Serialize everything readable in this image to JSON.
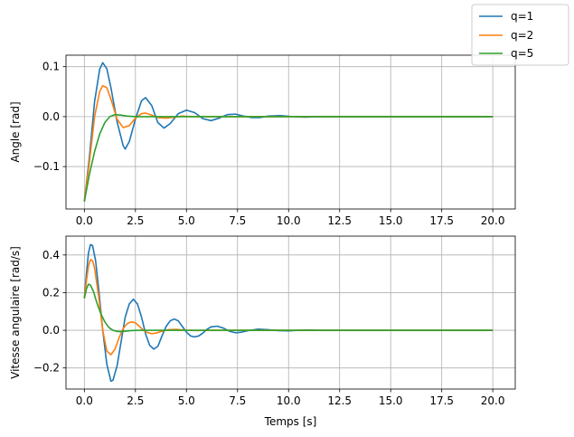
{
  "chart_data": [
    {
      "type": "line",
      "title": "",
      "xlabel": "",
      "ylabel": "Angle [rad]",
      "xlim": [
        -0.9,
        21.1
      ],
      "ylim": [
        -0.185,
        0.123
      ],
      "xticks": [
        0.0,
        2.5,
        5.0,
        7.5,
        10.0,
        12.5,
        15.0,
        17.5,
        20.0
      ],
      "xtick_labels": [
        "0.0",
        "2.5",
        "5.0",
        "7.5",
        "10.0",
        "12.5",
        "15.0",
        "17.5",
        "20.0"
      ],
      "yticks": [
        0.1,
        0.0,
        -0.1
      ],
      "ytick_labels": [
        "0.1",
        "0.0",
        "−0.1"
      ],
      "grid": true,
      "series": [
        {
          "name": "q=1",
          "color": "#1f77b4",
          "x": [
            0,
            0.25,
            0.5,
            0.75,
            0.9,
            1.1,
            1.3,
            1.6,
            1.9,
            2.0,
            2.2,
            2.5,
            2.8,
            3.0,
            3.3,
            3.6,
            3.9,
            4.2,
            4.6,
            5.0,
            5.4,
            5.8,
            6.2,
            6.6,
            7.0,
            7.4,
            7.8,
            8.2,
            8.6,
            9.0,
            9.6,
            10.2,
            10.8,
            11.4,
            12.0,
            13.0,
            14.0,
            16.0,
            18.0,
            20.0
          ],
          "y": [
            -0.17,
            -0.08,
            0.03,
            0.095,
            0.108,
            0.096,
            0.058,
            -0.01,
            -0.058,
            -0.065,
            -0.05,
            -0.005,
            0.032,
            0.038,
            0.022,
            -0.012,
            -0.023,
            -0.014,
            0.006,
            0.013,
            0.008,
            -0.004,
            -0.008,
            -0.003,
            0.004,
            0.005,
            0.001,
            -0.002,
            -0.002,
            0.001,
            0.002,
            0.0,
            -0.001,
            0.0,
            0.0,
            0.0,
            0.0,
            0.0,
            0.0,
            0.0
          ]
        },
        {
          "name": "q=2",
          "color": "#ff7f0e",
          "x": [
            0,
            0.25,
            0.5,
            0.75,
            0.9,
            1.1,
            1.3,
            1.6,
            1.9,
            2.2,
            2.5,
            2.8,
            3.0,
            3.3,
            3.6,
            4.0,
            4.4,
            4.8,
            5.2,
            6.0,
            7.0,
            8.0,
            10.0,
            12.0,
            15.0,
            20.0
          ],
          "y": [
            -0.17,
            -0.09,
            0.0,
            0.05,
            0.062,
            0.058,
            0.035,
            -0.005,
            -0.022,
            -0.018,
            -0.003,
            0.006,
            0.007,
            0.003,
            -0.002,
            -0.003,
            -0.001,
            0.001,
            0.0,
            0.0,
            0.0,
            0.0,
            0.0,
            0.0,
            0.0,
            0.0
          ]
        },
        {
          "name": "q=5",
          "color": "#2ca02c",
          "x": [
            0,
            0.25,
            0.5,
            0.75,
            1.0,
            1.25,
            1.5,
            1.8,
            2.1,
            2.5,
            3.0,
            3.5,
            4.0,
            5.0,
            6.0,
            8.0,
            10.0,
            12.0,
            15.0,
            20.0
          ],
          "y": [
            -0.17,
            -0.115,
            -0.07,
            -0.035,
            -0.012,
            0.0,
            0.004,
            0.003,
            0.001,
            0.0,
            0.0,
            0.0,
            0.0,
            0.0,
            0.0,
            0.0,
            0.0,
            0.0,
            0.0,
            0.0
          ]
        }
      ]
    },
    {
      "type": "line",
      "title": "",
      "xlabel": "Temps [s]",
      "ylabel": "Vitesse angulaire [rad/s]",
      "xlim": [
        -0.9,
        21.1
      ],
      "ylim": [
        -0.312,
        0.5
      ],
      "xticks": [
        0.0,
        2.5,
        5.0,
        7.5,
        10.0,
        12.5,
        15.0,
        17.5,
        20.0
      ],
      "xtick_labels": [
        "0.0",
        "2.5",
        "5.0",
        "7.5",
        "10.0",
        "12.5",
        "15.0",
        "17.5",
        "20.0"
      ],
      "yticks": [
        0.4,
        0.2,
        0.0,
        -0.2
      ],
      "ytick_labels": [
        "0.4",
        "0.2",
        "0.0",
        "−0.2"
      ],
      "grid": true,
      "series": [
        {
          "name": "q=1",
          "color": "#1f77b4",
          "x": [
            0,
            0.1,
            0.2,
            0.3,
            0.4,
            0.55,
            0.7,
            0.9,
            1.1,
            1.3,
            1.4,
            1.6,
            1.8,
            2.0,
            2.2,
            2.4,
            2.6,
            2.8,
            3.0,
            3.2,
            3.4,
            3.6,
            3.8,
            4.0,
            4.2,
            4.4,
            4.6,
            4.8,
            5.0,
            5.2,
            5.4,
            5.6,
            5.8,
            6.0,
            6.2,
            6.5,
            6.8,
            7.1,
            7.4,
            7.7,
            8.0,
            8.5,
            9.0,
            9.5,
            10.0,
            10.5,
            11.0,
            11.5,
            12.0,
            13.0,
            14.0,
            16.0,
            18.0,
            20.0
          ],
          "y": [
            0.17,
            0.3,
            0.41,
            0.455,
            0.45,
            0.37,
            0.22,
            0.0,
            -0.18,
            -0.27,
            -0.265,
            -0.19,
            -0.06,
            0.07,
            0.14,
            0.165,
            0.14,
            0.07,
            -0.02,
            -0.08,
            -0.1,
            -0.085,
            -0.03,
            0.02,
            0.05,
            0.06,
            0.05,
            0.02,
            -0.01,
            -0.03,
            -0.035,
            -0.03,
            -0.015,
            0.005,
            0.018,
            0.022,
            0.012,
            -0.005,
            -0.013,
            -0.01,
            -0.002,
            0.006,
            0.003,
            -0.002,
            -0.003,
            0.0,
            0.002,
            0.0,
            0.0,
            0.0,
            0.0,
            0.0,
            0.0,
            0.0
          ]
        },
        {
          "name": "q=2",
          "color": "#ff7f0e",
          "x": [
            0,
            0.1,
            0.2,
            0.3,
            0.4,
            0.5,
            0.7,
            0.9,
            1.1,
            1.3,
            1.5,
            1.7,
            1.9,
            2.1,
            2.3,
            2.5,
            2.7,
            2.9,
            3.1,
            3.3,
            3.5,
            3.8,
            4.1,
            4.5,
            5.0,
            5.5,
            6.0,
            7.0,
            8.0,
            10.0,
            12.0,
            15.0,
            20.0
          ],
          "y": [
            0.17,
            0.26,
            0.34,
            0.375,
            0.37,
            0.33,
            0.18,
            0.0,
            -0.11,
            -0.13,
            -0.1,
            -0.04,
            0.01,
            0.035,
            0.045,
            0.04,
            0.02,
            0.0,
            -0.012,
            -0.018,
            -0.015,
            -0.005,
            0.003,
            0.005,
            0.0,
            -0.001,
            0.0,
            0.0,
            0.0,
            0.0,
            0.0,
            0.0,
            0.0
          ]
        },
        {
          "name": "q=5",
          "color": "#2ca02c",
          "x": [
            0,
            0.1,
            0.2,
            0.3,
            0.45,
            0.6,
            0.8,
            1.0,
            1.2,
            1.4,
            1.6,
            1.8,
            2.0,
            2.3,
            2.6,
            3.0,
            3.5,
            4.0,
            5.0,
            6.0,
            8.0,
            10.0,
            12.0,
            15.0,
            20.0
          ],
          "y": [
            0.17,
            0.22,
            0.245,
            0.24,
            0.205,
            0.15,
            0.09,
            0.045,
            0.015,
            0.0,
            -0.006,
            -0.007,
            -0.005,
            -0.002,
            0.0,
            0.0,
            0.0,
            0.0,
            0.0,
            0.0,
            0.0,
            0.0,
            0.0,
            0.0,
            0.0
          ]
        }
      ]
    }
  ],
  "legend": {
    "placement": "top-right",
    "entries": [
      {
        "label": "q=1",
        "color": "#1f77b4"
      },
      {
        "label": "q=2",
        "color": "#ff7f0e"
      },
      {
        "label": "q=5",
        "color": "#2ca02c"
      }
    ]
  }
}
